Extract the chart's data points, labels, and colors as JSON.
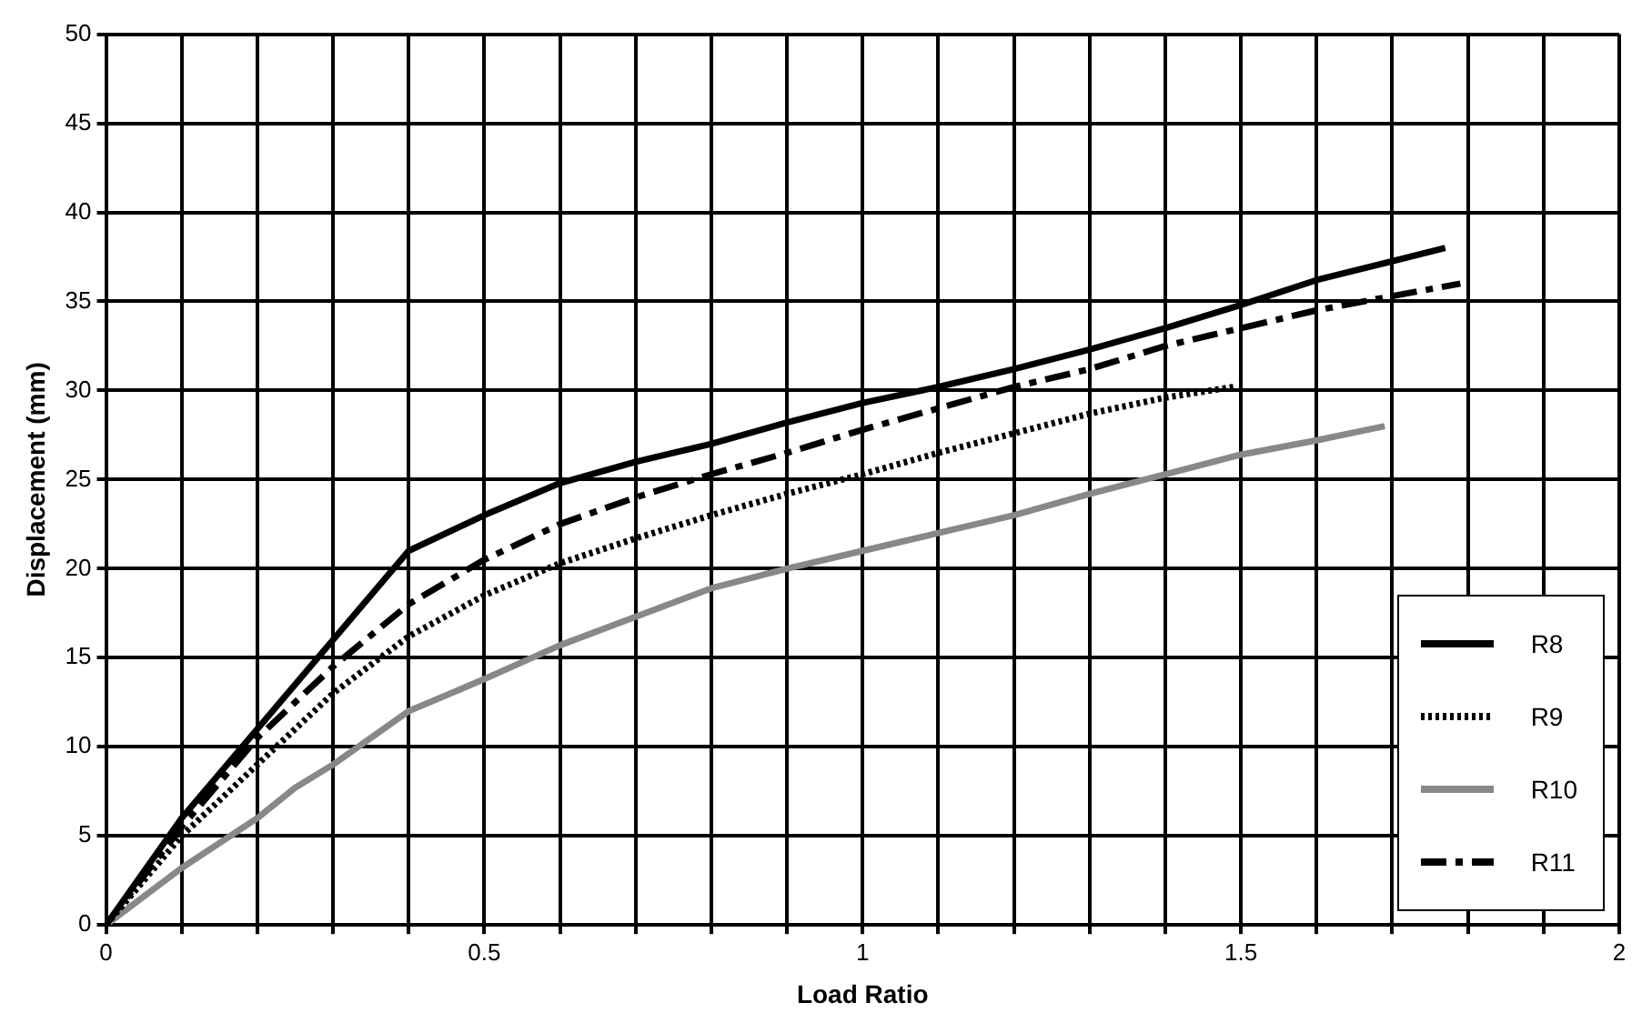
{
  "chart_data": {
    "type": "line",
    "xlabel": "Load Ratio",
    "ylabel": "Displacement (mm)",
    "xlim": [
      0,
      2
    ],
    "ylim": [
      0,
      50
    ],
    "xticks": [
      0,
      {
        "value": 0.1,
        "label": null
      },
      {
        "value": 0.2,
        "label": null
      },
      {
        "value": 0.3,
        "label": null
      },
      {
        "value": 0.4,
        "label": null
      },
      0.5,
      {
        "value": 0.6,
        "label": null
      },
      {
        "value": 0.7,
        "label": null
      },
      {
        "value": 0.8,
        "label": null
      },
      {
        "value": 0.9,
        "label": null
      },
      1,
      {
        "value": 1.1,
        "label": null
      },
      {
        "value": 1.2,
        "label": null
      },
      {
        "value": 1.3,
        "label": null
      },
      {
        "value": 1.4,
        "label": null
      },
      1.5,
      {
        "value": 1.6,
        "label": null
      },
      {
        "value": 1.7,
        "label": null
      },
      {
        "value": 1.8,
        "label": null
      },
      {
        "value": 1.9,
        "label": null
      },
      2
    ],
    "yticks": [
      0,
      5,
      10,
      15,
      20,
      25,
      30,
      35,
      40,
      45,
      50
    ],
    "grid": true,
    "legend": "bottom right",
    "marker": "none",
    "series": [
      {
        "name": "R8",
        "color": "#000000",
        "line_style": "solid",
        "x": [
          0,
          0.1,
          0.2,
          0.3,
          0.4,
          0.5,
          0.6,
          0.7,
          0.8,
          0.9,
          1,
          1.1,
          1.2,
          1.3,
          1.4,
          1.5,
          1.6,
          1.77
        ],
        "values": [
          0,
          6,
          11,
          16,
          21,
          23,
          24.8,
          26,
          27,
          28.2,
          29.3,
          30.2,
          31.2,
          32.3,
          33.5,
          34.8,
          36.2,
          38
        ]
      },
      {
        "name": "R9",
        "color": "#000000",
        "line_style": "dotted",
        "x": [
          0,
          0.1,
          0.2,
          0.3,
          0.4,
          0.5,
          0.6,
          0.7,
          0.8,
          0.9,
          1,
          1.1,
          1.2,
          1.3,
          1.4,
          1.49
        ],
        "values": [
          0,
          5,
          9,
          13,
          16.2,
          18.5,
          20.3,
          21.7,
          23,
          24.2,
          25.3,
          26.5,
          27.6,
          28.7,
          29.6,
          30.2
        ]
      },
      {
        "name": "R10",
        "color": "#888888",
        "line_style": "solid",
        "x": [
          0,
          0.1,
          0.2,
          0.25,
          0.3,
          0.4,
          0.5,
          0.6,
          0.7,
          0.8,
          0.9,
          1,
          1.1,
          1.2,
          1.3,
          1.4,
          1.5,
          1.6,
          1.69
        ],
        "values": [
          0,
          3.2,
          6,
          7.7,
          9,
          12,
          13.8,
          15.7,
          17.3,
          18.9,
          20,
          21,
          22,
          23,
          24.2,
          25.3,
          26.4,
          27.2,
          28
        ]
      },
      {
        "name": "R11",
        "color": "#000000",
        "line_style": "dashed",
        "x": [
          0,
          0.1,
          0.2,
          0.3,
          0.4,
          0.5,
          0.6,
          0.7,
          0.8,
          0.9,
          1,
          1.1,
          1.2,
          1.3,
          1.4,
          1.5,
          1.6,
          1.7,
          1.79
        ],
        "values": [
          0,
          5.5,
          10.5,
          14.5,
          18,
          20.5,
          22.5,
          24,
          25.3,
          26.5,
          27.8,
          29,
          30.2,
          31.2,
          32.5,
          33.5,
          34.5,
          35.3,
          36
        ]
      }
    ]
  }
}
